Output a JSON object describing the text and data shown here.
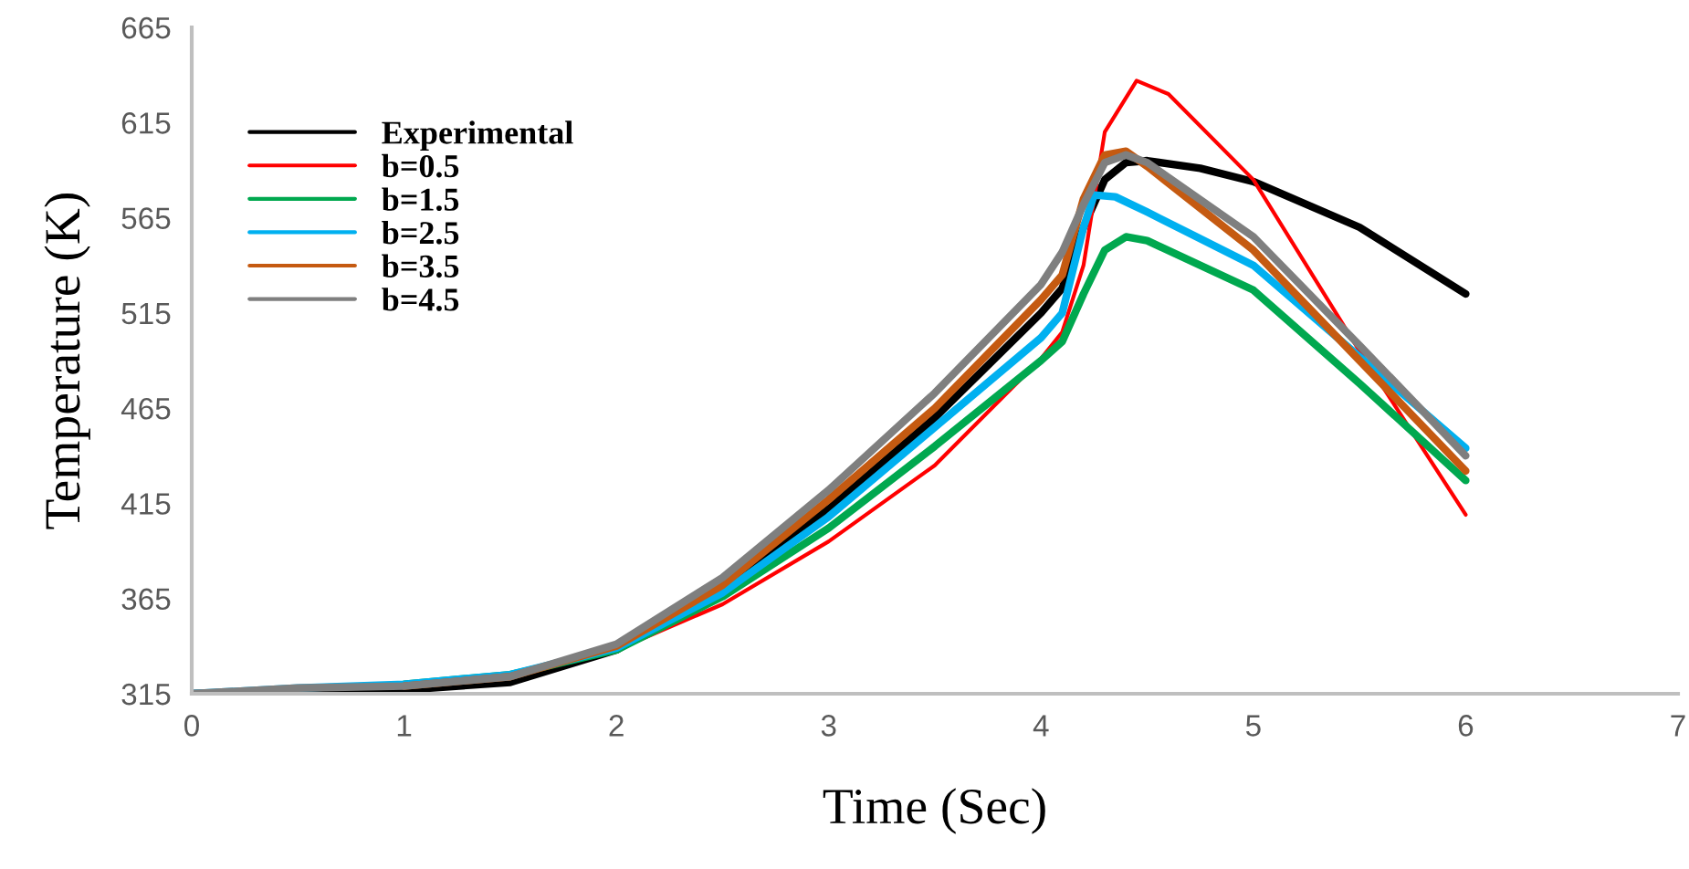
{
  "chart_data": {
    "type": "line",
    "xlabel": "Time (Sec)",
    "ylabel": "Temperature (K)",
    "xlim": [
      0,
      7
    ],
    "xticks": [
      0,
      1,
      2,
      3,
      4,
      5,
      6,
      7
    ],
    "ylim": [
      315,
      665
    ],
    "yticks": [
      315,
      365,
      415,
      465,
      515,
      565,
      615,
      665
    ],
    "grid": false,
    "legend": "top left",
    "marker": "none",
    "line_style": "solid",
    "series": [
      {
        "name": "Experimental",
        "color": "#000000",
        "x": [
          0,
          0.5,
          1,
          1.5,
          2,
          2.5,
          3,
          3.5,
          4,
          4.1,
          4.2,
          4.3,
          4.4,
          4.5,
          4.75,
          5,
          5.5,
          6
        ],
        "values": [
          315,
          317,
          317,
          321,
          338,
          370,
          412,
          460,
          515,
          528,
          560,
          585,
          594,
          595,
          591,
          584,
          560,
          525
        ]
      },
      {
        "name": "b=0.5",
        "color": "#ff0000",
        "x": [
          1.5,
          2,
          2.5,
          3,
          3.5,
          4,
          4.1,
          4.2,
          4.3,
          4.45,
          4.6,
          5,
          5.5,
          6
        ],
        "values": [
          324,
          338,
          362,
          395,
          435,
          491,
          505,
          540,
          610,
          637,
          630,
          585,
          495,
          409
        ]
      },
      {
        "name": "b=1.5",
        "color": "#00a84f",
        "x": [
          1,
          1.5,
          2,
          2.5,
          3,
          3.5,
          4,
          4.1,
          4.2,
          4.3,
          4.4,
          4.5,
          5,
          5.5,
          6
        ],
        "values": [
          320,
          325,
          338,
          366,
          402,
          445,
          490,
          500,
          525,
          548,
          555,
          553,
          527,
          478,
          427
        ]
      },
      {
        "name": "b=2.5",
        "color": "#00b0f0",
        "x": [
          0,
          0.5,
          1,
          1.5,
          2,
          2.5,
          3,
          3.5,
          4,
          4.1,
          4.2,
          4.25,
          4.35,
          4.5,
          5,
          5.5,
          6
        ],
        "values": [
          315,
          318,
          320,
          325,
          339,
          368,
          408,
          455,
          502,
          515,
          560,
          577,
          576,
          568,
          540,
          492,
          444
        ]
      },
      {
        "name": "b=3.5",
        "color": "#c55a11",
        "x": [
          1,
          1.5,
          2,
          2.5,
          3,
          3.5,
          4,
          4.1,
          4.2,
          4.3,
          4.4,
          4.5,
          5,
          5.5,
          6
        ],
        "values": [
          319,
          324,
          340,
          372,
          417,
          465,
          522,
          535,
          575,
          598,
          600,
          592,
          548,
          490,
          432
        ]
      },
      {
        "name": "b=4.5",
        "color": "#7f7f7f",
        "x": [
          0,
          0.5,
          1,
          1.5,
          2,
          2.5,
          3,
          3.5,
          4,
          4.1,
          4.2,
          4.3,
          4.4,
          4.5,
          5,
          5.5,
          6
        ],
        "values": [
          315,
          318,
          319,
          324,
          341,
          376,
          422,
          473,
          530,
          547,
          572,
          594,
          598,
          594,
          555,
          498,
          440
        ]
      }
    ]
  }
}
